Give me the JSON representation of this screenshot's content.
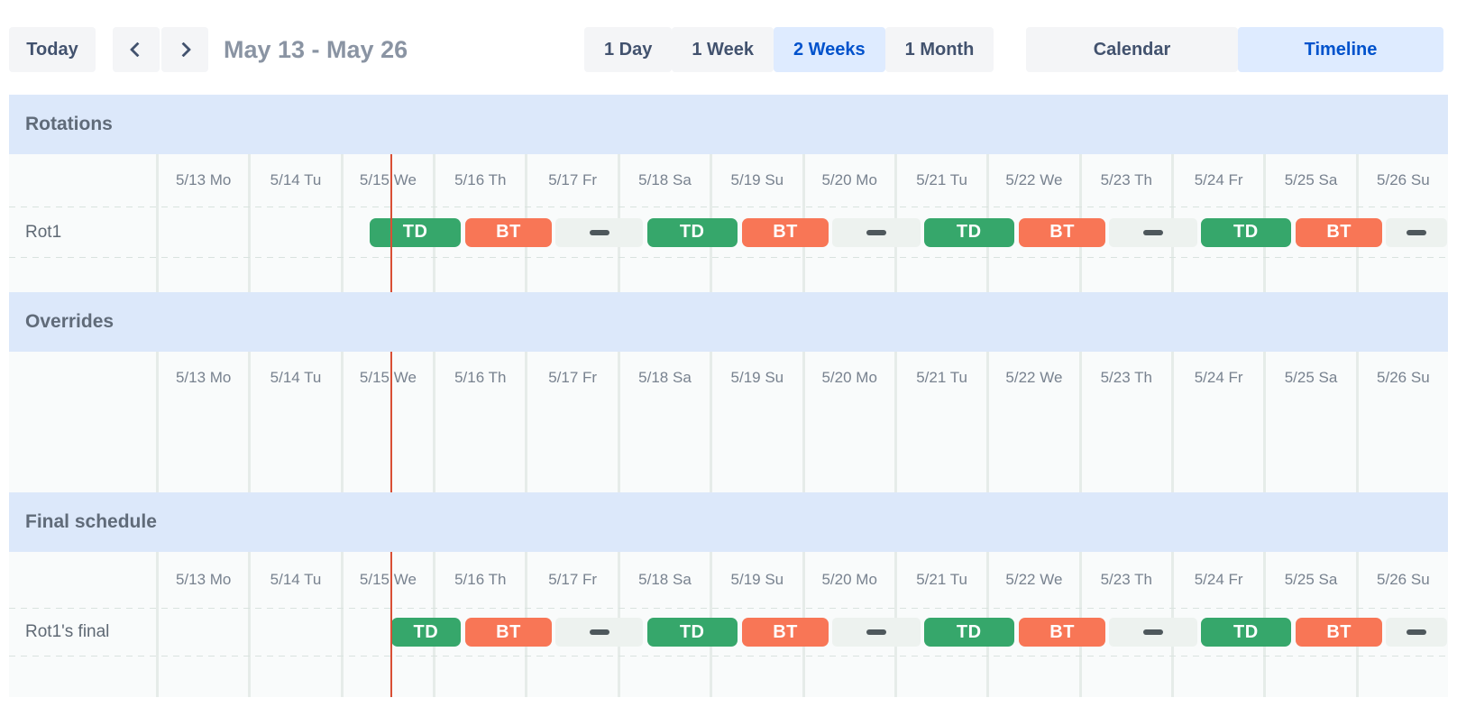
{
  "toolbar": {
    "today_label": "Today",
    "prev_icon": "chevron-left",
    "next_icon": "chevron-right",
    "title": "May 13 - May 26",
    "range_options": [
      {
        "label": "1 Day",
        "selected": false
      },
      {
        "label": "1 Week",
        "selected": false
      },
      {
        "label": "2 Weeks",
        "selected": true
      },
      {
        "label": "1 Month",
        "selected": false
      }
    ],
    "view_options": [
      {
        "label": "Calendar",
        "selected": false
      },
      {
        "label": "Timeline",
        "selected": true
      }
    ]
  },
  "timeline": {
    "days": [
      "5/13 Mo",
      "5/14 Tu",
      "5/15 We",
      "5/16 Th",
      "5/17 Fr",
      "5/18 Sa",
      "5/19 Su",
      "5/20 Mo",
      "5/21 Tu",
      "5/22 We",
      "5/23 Th",
      "5/24 Fr",
      "5/25 Sa",
      "5/26 Su"
    ],
    "now_marker_day": 2.54
  },
  "colors": {
    "shift_td": "#36a76b",
    "shift_bt": "#f87656",
    "gap_pill": "#edf2ef",
    "gap_dash": "#4e585c",
    "now_line": "#d94f35",
    "selected_bg": "#deebff",
    "selected_text": "#0052cc",
    "section_header_bg": "#dce8fa",
    "button_bg": "#f4f5f7",
    "button_text": "#42526e"
  },
  "sections": [
    {
      "id": "rotations",
      "title": "Rotations",
      "lanes": [
        {
          "label": "Rot1",
          "bars": [
            {
              "kind": "td",
              "label": "TD",
              "start": 2.31,
              "end": 3.31
            },
            {
              "kind": "bt",
              "label": "BT",
              "start": 3.34,
              "end": 4.3
            },
            {
              "kind": "gap",
              "label": "",
              "start": 4.32,
              "end": 5.29
            },
            {
              "kind": "td",
              "label": "TD",
              "start": 5.31,
              "end": 6.31
            },
            {
              "kind": "bt",
              "label": "BT",
              "start": 6.34,
              "end": 7.3
            },
            {
              "kind": "gap",
              "label": "",
              "start": 7.32,
              "end": 8.29
            },
            {
              "kind": "td",
              "label": "TD",
              "start": 8.31,
              "end": 9.31
            },
            {
              "kind": "bt",
              "label": "BT",
              "start": 9.34,
              "end": 10.3
            },
            {
              "kind": "gap",
              "label": "",
              "start": 10.32,
              "end": 11.29
            },
            {
              "kind": "td",
              "label": "TD",
              "start": 11.31,
              "end": 12.31
            },
            {
              "kind": "bt",
              "label": "BT",
              "start": 12.34,
              "end": 13.3
            },
            {
              "kind": "gap",
              "label": "",
              "start": 13.32,
              "end": 14.0
            }
          ]
        }
      ]
    },
    {
      "id": "overrides",
      "title": "Overrides",
      "lanes": []
    },
    {
      "id": "final",
      "title": "Final schedule",
      "lanes": [
        {
          "label": "Rot1's final",
          "bars": [
            {
              "kind": "td",
              "label": "TD",
              "start": 2.54,
              "end": 3.31
            },
            {
              "kind": "bt",
              "label": "BT",
              "start": 3.34,
              "end": 4.3
            },
            {
              "kind": "gap",
              "label": "",
              "start": 4.32,
              "end": 5.29
            },
            {
              "kind": "td",
              "label": "TD",
              "start": 5.31,
              "end": 6.31
            },
            {
              "kind": "bt",
              "label": "BT",
              "start": 6.34,
              "end": 7.3
            },
            {
              "kind": "gap",
              "label": "",
              "start": 7.32,
              "end": 8.29
            },
            {
              "kind": "td",
              "label": "TD",
              "start": 8.31,
              "end": 9.31
            },
            {
              "kind": "bt",
              "label": "BT",
              "start": 9.34,
              "end": 10.3
            },
            {
              "kind": "gap",
              "label": "",
              "start": 10.32,
              "end": 11.29
            },
            {
              "kind": "td",
              "label": "TD",
              "start": 11.31,
              "end": 12.31
            },
            {
              "kind": "bt",
              "label": "BT",
              "start": 12.34,
              "end": 13.3
            },
            {
              "kind": "gap",
              "label": "",
              "start": 13.32,
              "end": 14.0
            }
          ]
        }
      ]
    }
  ]
}
